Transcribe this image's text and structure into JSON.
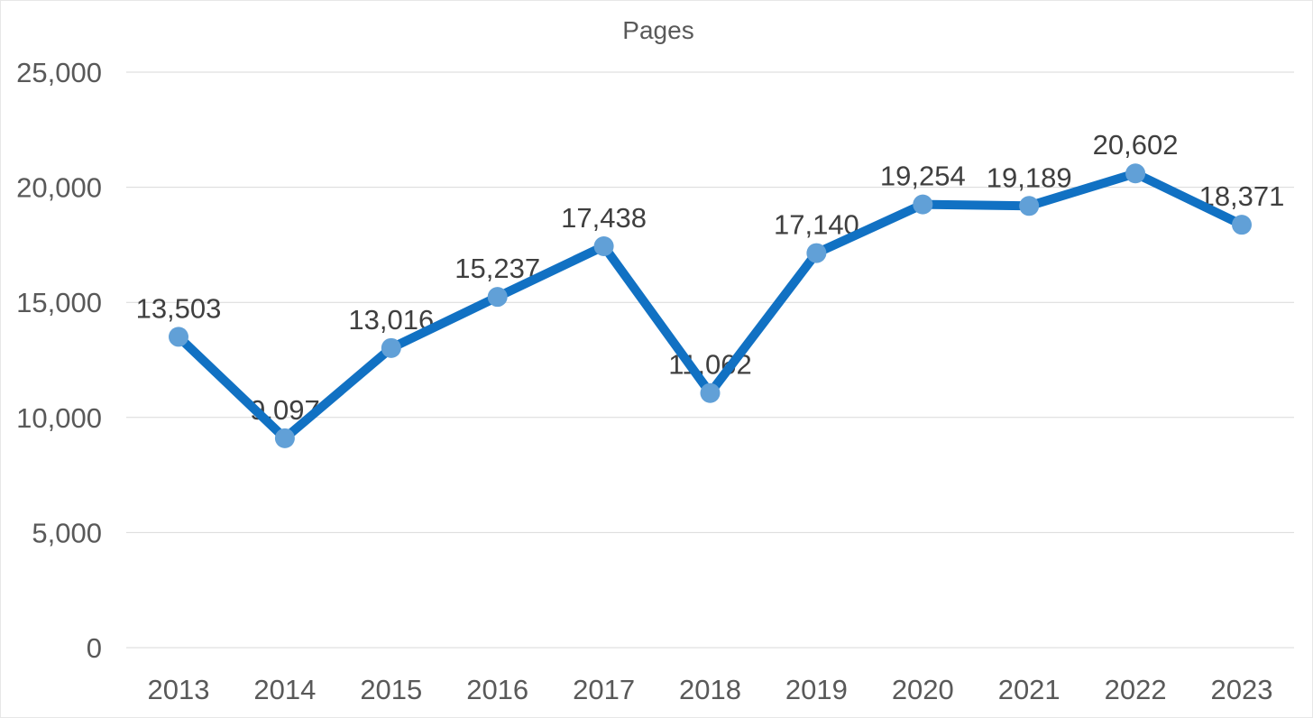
{
  "chart": {
    "title": "Pages"
  },
  "chart_data": {
    "type": "line",
    "title": "Pages",
    "categories": [
      "2013",
      "2014",
      "2015",
      "2016",
      "2017",
      "2018",
      "2019",
      "2020",
      "2021",
      "2022",
      "2023"
    ],
    "series": [
      {
        "name": "Pages",
        "values": [
          13503,
          9097,
          13016,
          15237,
          17438,
          11062,
          17140,
          19254,
          19189,
          20602,
          18371
        ]
      }
    ],
    "data_labels": [
      "13,503",
      "9,097",
      "13,016",
      "15,237",
      "17,438",
      "11,062",
      "17,140",
      "19,254",
      "19,189",
      "20,602",
      "18,371"
    ],
    "y_ticks": [
      0,
      5000,
      10000,
      15000,
      20000,
      25000
    ],
    "y_tick_labels": [
      "0",
      "5,000",
      "10,000",
      "15,000",
      "20,000",
      "25,000"
    ],
    "ylim": [
      0,
      25000
    ],
    "xlabel": "",
    "ylabel": "",
    "grid": "horizontal",
    "legend": "none",
    "marker": "circle",
    "colors": {
      "line": "#1171c3",
      "marker": "#61a0d7",
      "gridline": "#d9d9d9",
      "axis_text": "#595959",
      "label_text": "#3f3f3f",
      "title_text": "#595959",
      "background": "#ffffff",
      "border": "#e7e7e7"
    }
  }
}
